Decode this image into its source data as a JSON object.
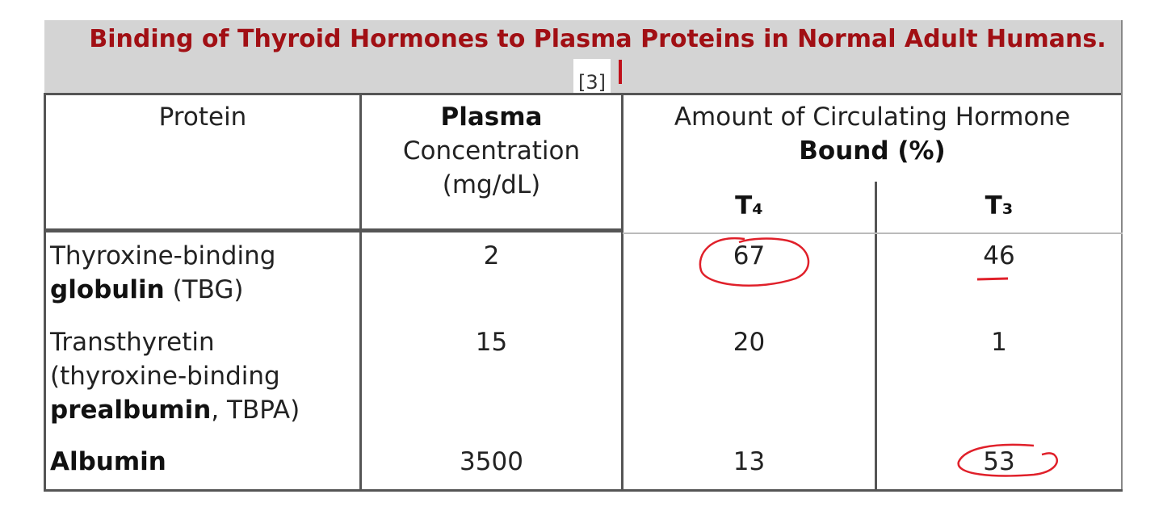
{
  "table": {
    "title": "Binding of Thyroid Hormones to Plasma Proteins in Normal Adult Humans.",
    "title_ref": "[3]",
    "header": {
      "protein": "Protein",
      "plasma": [
        "Plasma",
        "Concentration",
        "(mg/dL)"
      ],
      "amount": [
        "Amount of Circulating Hormone",
        "Bound (%)"
      ],
      "t4": "T₄",
      "t3": "T₃"
    },
    "rows": [
      {
        "protein": [
          "Thyroxine-binding",
          "globulin",
          "(TBG)"
        ],
        "plasma": 2,
        "t4": 67,
        "t3": 46
      },
      {
        "protein": [
          "Transthyretin",
          "(thyroxine-binding",
          "prealbumin",
          ", TBPA)"
        ],
        "plasma": 15,
        "t4": 20,
        "t3": 1
      },
      {
        "protein": [
          "Albumin"
        ],
        "plasma": 3500,
        "t4": 13,
        "t3": 53
      }
    ]
  }
}
